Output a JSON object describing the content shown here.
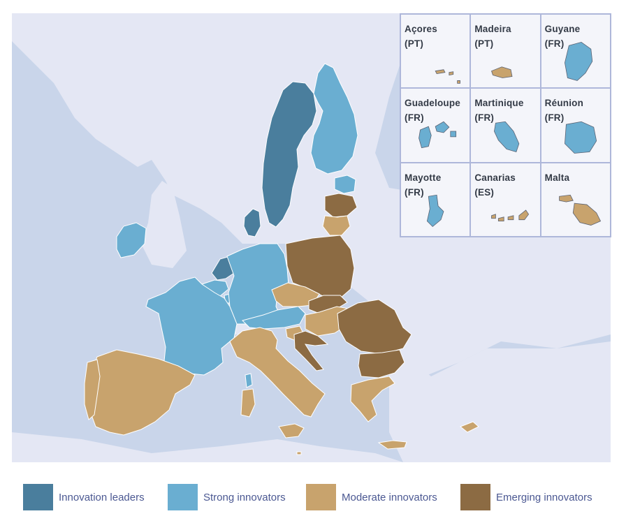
{
  "colors": {
    "sea": "#c9d5ea",
    "non_eu_land": "#e4e7f4",
    "border": "#ffffff",
    "innovation_leaders": "#4a7e9d",
    "strong_innovators": "#6aaed1",
    "moderate_innovators": "#c8a36d",
    "emerging_innovators": "#8c6b43"
  },
  "insets": [
    {
      "name": "Açores",
      "code": "(PT)",
      "category": "moderate_innovators",
      "icon": "archipelago-outline"
    },
    {
      "name": "Madeira",
      "code": "(PT)",
      "category": "moderate_innovators",
      "icon": "island-outline"
    },
    {
      "name": "Guyane",
      "code": "(FR)",
      "category": "strong_innovators",
      "icon": "territory-outline"
    },
    {
      "name": "Guadeloupe",
      "code": "(FR)",
      "category": "strong_innovators",
      "icon": "island-outline"
    },
    {
      "name": "Martinique",
      "code": "(FR)",
      "category": "strong_innovators",
      "icon": "island-outline"
    },
    {
      "name": "Réunion",
      "code": "(FR)",
      "category": "strong_innovators",
      "icon": "island-outline"
    },
    {
      "name": "Mayotte",
      "code": "(FR)",
      "category": "strong_innovators",
      "icon": "island-outline"
    },
    {
      "name": "Canarias",
      "code": "(ES)",
      "category": "moderate_innovators",
      "icon": "archipelago-outline"
    },
    {
      "name": "Malta",
      "code": "",
      "category": "moderate_innovators",
      "icon": "island-outline"
    }
  ],
  "legend": [
    {
      "key": "innovation_leaders",
      "label": "Innovation leaders"
    },
    {
      "key": "strong_innovators",
      "label": "Strong innovators"
    },
    {
      "key": "moderate_innovators",
      "label": "Moderate innovators"
    },
    {
      "key": "emerging_innovators",
      "label": "Emerging innovators"
    }
  ],
  "regions": [
    {
      "id": "SE",
      "category": "innovation_leaders"
    },
    {
      "id": "DK",
      "category": "innovation_leaders"
    },
    {
      "id": "NL",
      "category": "innovation_leaders"
    },
    {
      "id": "FI",
      "category": "strong_innovators"
    },
    {
      "id": "IE",
      "category": "strong_innovators"
    },
    {
      "id": "FR",
      "category": "strong_innovators"
    },
    {
      "id": "DE",
      "category": "strong_innovators"
    },
    {
      "id": "AT",
      "category": "strong_innovators"
    },
    {
      "id": "BE",
      "category": "strong_innovators"
    },
    {
      "id": "LU",
      "category": "strong_innovators"
    },
    {
      "id": "EE",
      "category": "strong_innovators"
    },
    {
      "id": "ES",
      "category": "moderate_innovators"
    },
    {
      "id": "PT",
      "category": "moderate_innovators"
    },
    {
      "id": "IT",
      "category": "moderate_innovators"
    },
    {
      "id": "CZ",
      "category": "moderate_innovators"
    },
    {
      "id": "SI",
      "category": "moderate_innovators"
    },
    {
      "id": "LT",
      "category": "moderate_innovators"
    },
    {
      "id": "GR",
      "category": "moderate_innovators"
    },
    {
      "id": "CY",
      "category": "moderate_innovators"
    },
    {
      "id": "MT",
      "category": "moderate_innovators"
    },
    {
      "id": "HU",
      "category": "moderate_innovators"
    },
    {
      "id": "PL",
      "category": "emerging_innovators"
    },
    {
      "id": "SK",
      "category": "emerging_innovators"
    },
    {
      "id": "HR",
      "category": "emerging_innovators"
    },
    {
      "id": "RO",
      "category": "emerging_innovators"
    },
    {
      "id": "BG",
      "category": "emerging_innovators"
    },
    {
      "id": "LV",
      "category": "emerging_innovators"
    }
  ]
}
